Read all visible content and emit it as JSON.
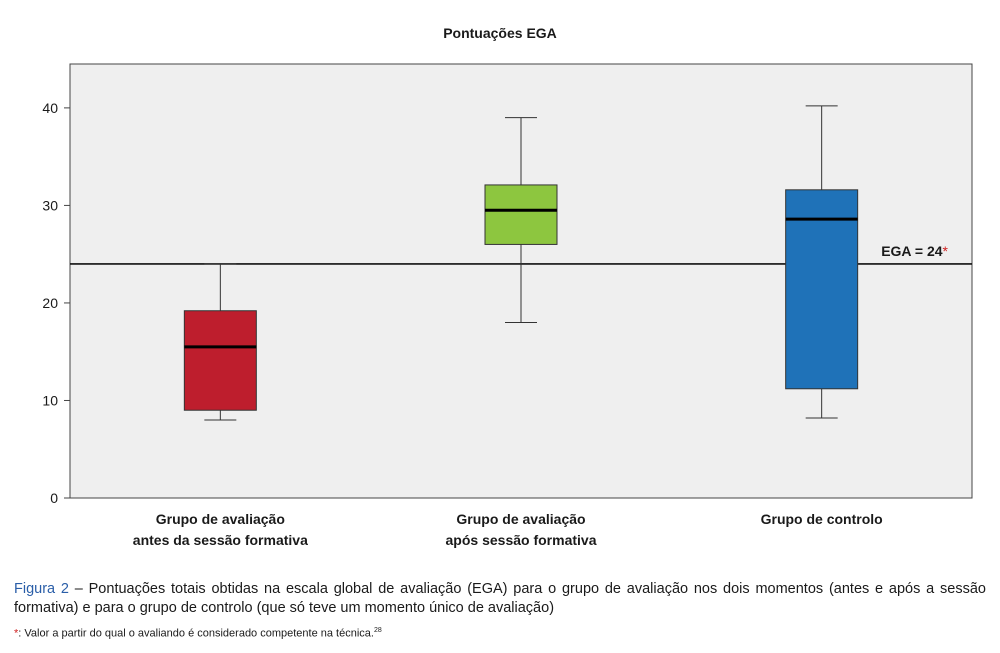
{
  "chart_data": {
    "type": "boxplot",
    "title": "Pontuações EGA",
    "xlabel": "",
    "ylabel": "",
    "ylim": [
      0,
      44.5
    ],
    "yticks": [
      0,
      10,
      20,
      30,
      40
    ],
    "grid": false,
    "background": "#efefef",
    "groups": [
      {
        "label_lines": [
          "Grupo de avaliação",
          "antes da sessão formativa"
        ],
        "color": "#be1e2d",
        "min": 8,
        "q1": 9,
        "median": 15.5,
        "q3": 19.2,
        "max": 24
      },
      {
        "label_lines": [
          "Grupo de avaliação",
          "após sessão formativa"
        ],
        "color": "#8dc63f",
        "min": 18,
        "q1": 26,
        "median": 29.5,
        "q3": 32.1,
        "max": 39
      },
      {
        "label_lines": [
          "Grupo de controlo"
        ],
        "color": "#1f72b8",
        "min": 8.2,
        "q1": 11.2,
        "median": 28.6,
        "q3": 31.6,
        "max": 40.2
      }
    ],
    "reference_line": {
      "value": 24,
      "label": "EGA = 24",
      "marker": "*",
      "marker_color": "#d02020"
    }
  },
  "caption": {
    "figure_label": "Figura 2",
    "text": " – Pontuações totais obtidas na escala global de avaliação (EGA) para o grupo de avaliação nos dois momentos (antes e após a sessão formativa) e para o grupo de controlo (que só teve um momento único de avaliação)"
  },
  "footnote": {
    "marker": "*",
    "text": ": Valor a partir do qual o avaliando é considerado competente na técnica.",
    "reference": "28"
  }
}
